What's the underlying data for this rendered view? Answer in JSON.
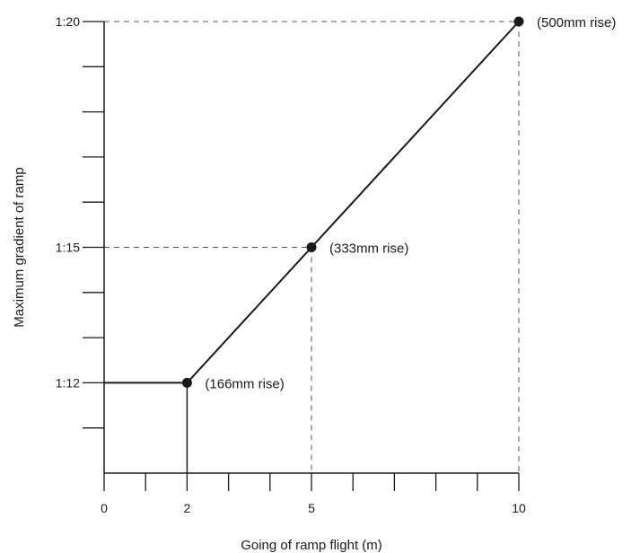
{
  "chart_data": {
    "type": "line",
    "xlabel": "Going of ramp flight (m)",
    "ylabel": "Maximum gradient of ramp",
    "xlim": [
      0,
      10
    ],
    "x_ticks": [
      {
        "value": 0,
        "label": "0"
      },
      {
        "value": 2,
        "label": "2"
      },
      {
        "value": 5,
        "label": "5"
      },
      {
        "value": 10,
        "label": "10"
      }
    ],
    "x_minor_tick_step": 1,
    "y_ticks": [
      {
        "value": 12,
        "label": "1:12"
      },
      {
        "value": 15,
        "label": "1:15"
      },
      {
        "value": 20,
        "label": "1:20"
      }
    ],
    "y_minor_tick_step": 1,
    "ylim": [
      10,
      20
    ],
    "y_scale_note": "gradient 1:n, n plotted linearly",
    "series": [
      {
        "points": [
          {
            "x": 0,
            "y": 12
          },
          {
            "x": 2,
            "y": 12
          },
          {
            "x": 5,
            "y": 15
          },
          {
            "x": 10,
            "y": 20
          }
        ]
      }
    ],
    "markers": [
      {
        "x": 2,
        "y": 12,
        "label": "(166mm rise)"
      },
      {
        "x": 5,
        "y": 15,
        "label": "(333mm rise)"
      },
      {
        "x": 10,
        "y": 20,
        "label": "(500mm rise)"
      }
    ],
    "grid": false,
    "guide_lines": "dashed to axes from each marker",
    "colors": {
      "line": "#1a1a1a",
      "guide": "#555555"
    }
  }
}
